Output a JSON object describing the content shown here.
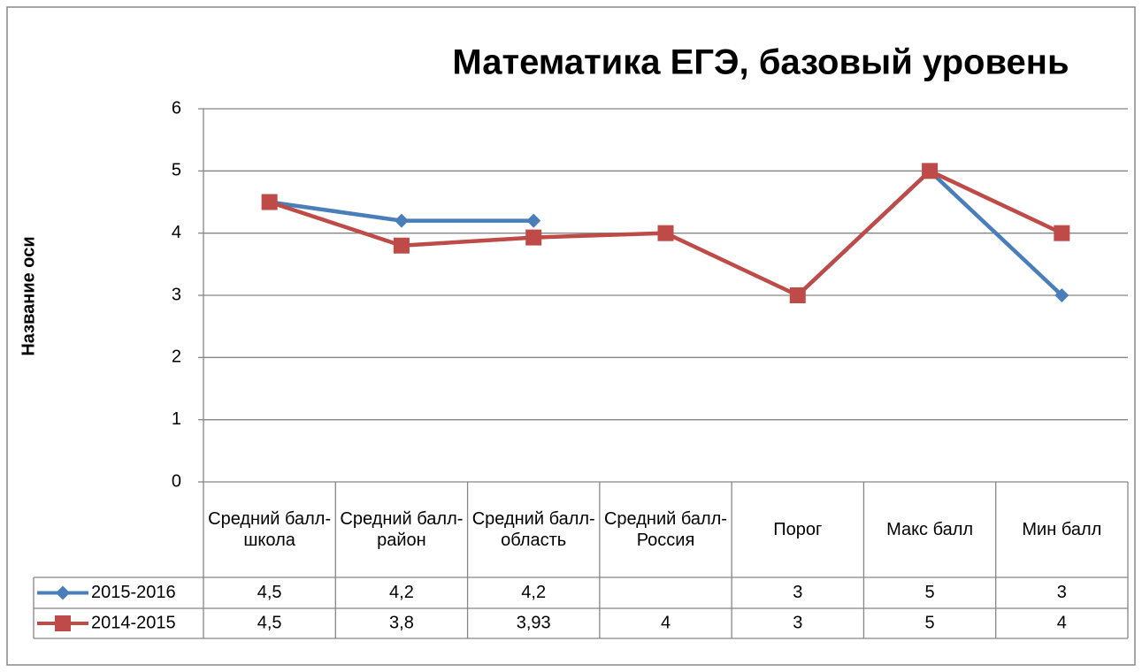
{
  "chart_data": {
    "type": "line",
    "title": "Математика ЕГЭ, базовый уровень",
    "y_label": "Название оси",
    "categories": [
      "Средний балл-школа",
      "Средний балл-район",
      "Средний балл-область",
      "Средний балл-Россия",
      "Порог",
      "Макс балл",
      "Мин балл"
    ],
    "series": [
      {
        "name": "2015-2016",
        "color": "#4a7ebb",
        "marker": "diamond",
        "values": [
          4.5,
          4.2,
          4.2,
          null,
          3,
          5,
          3
        ],
        "value_labels": [
          "4,5",
          "4,2",
          "4,2",
          null,
          "3",
          "5",
          "3"
        ]
      },
      {
        "name": "2014-2015",
        "color": "#be4b48",
        "marker": "square",
        "values": [
          4.5,
          3.8,
          3.93,
          4,
          3,
          5,
          4
        ],
        "value_labels": [
          "4,5",
          "3,8",
          "3,93",
          "4",
          "3",
          "5",
          "4"
        ]
      }
    ],
    "ylim": [
      0,
      6
    ],
    "yticks": [
      0,
      1,
      2,
      3,
      4,
      5,
      6
    ],
    "grid": true,
    "legend": "data-table"
  }
}
